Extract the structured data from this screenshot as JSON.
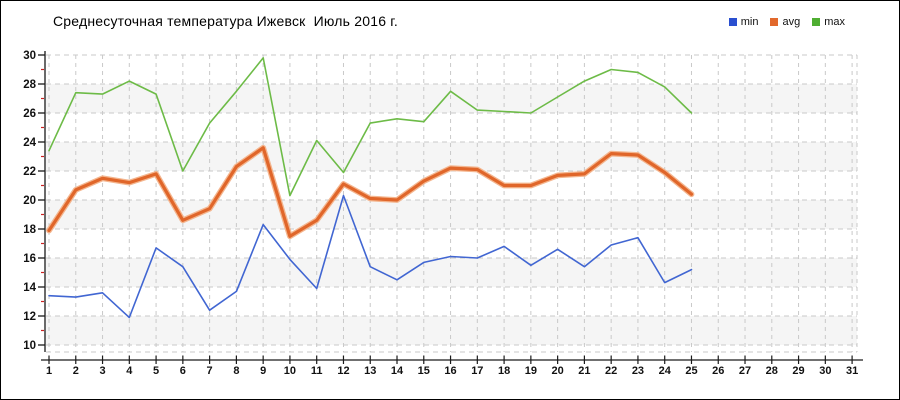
{
  "title": "Среднесуточная температура Ижевск  Июль 2016 г.",
  "legend": [
    {
      "label": "min",
      "color": "#2a4fd0"
    },
    {
      "label": "avg",
      "color": "#e2692c"
    },
    {
      "label": "max",
      "color": "#4fae32"
    }
  ],
  "chart_data": {
    "type": "line",
    "title": "Среднесуточная температура Ижевск  Июль 2016 г.",
    "xlabel": "",
    "ylabel": "",
    "x_days": [
      1,
      2,
      3,
      4,
      5,
      6,
      7,
      8,
      9,
      10,
      11,
      12,
      13,
      14,
      15,
      16,
      17,
      18,
      19,
      20,
      21,
      22,
      23,
      24,
      25,
      26,
      27,
      28,
      29,
      30,
      31
    ],
    "xlim": [
      1,
      31
    ],
    "ylim": [
      10,
      30
    ],
    "y_major_step": 2,
    "y_minor_step": 1,
    "grid": "dashed",
    "legend_position": "top-right",
    "gray_bands": [
      [
        10,
        12
      ],
      [
        14,
        16
      ],
      [
        18,
        20
      ],
      [
        22,
        24
      ],
      [
        26,
        28
      ]
    ],
    "colors": {
      "grid": "#c9c9c9",
      "axis": "#1a1a1a",
      "minor_tick": "#cc2222",
      "band": "#f5f5f5"
    },
    "series": [
      {
        "name": "max",
        "color": "#6dbb47",
        "width": 1.6,
        "values": [
          23.4,
          27.4,
          27.3,
          28.2,
          27.3,
          22.0,
          25.3,
          27.5,
          29.8,
          20.3,
          24.1,
          21.9,
          25.3,
          25.6,
          25.4,
          27.5,
          26.2,
          26.1,
          26.0,
          27.1,
          28.2,
          29.0,
          28.8,
          27.8,
          26.0
        ]
      },
      {
        "name": "min",
        "color": "#4166d2",
        "width": 1.6,
        "values": [
          13.4,
          13.3,
          13.6,
          11.9,
          16.7,
          15.4,
          12.4,
          13.7,
          18.3,
          15.9,
          13.9,
          20.3,
          15.4,
          14.5,
          15.7,
          16.1,
          16.0,
          16.8,
          15.5,
          16.6,
          15.4,
          16.9,
          17.4,
          14.3,
          15.2
        ]
      },
      {
        "name": "avg",
        "color": "#e0662a",
        "width": 3.2,
        "halo": "#f4b68f",
        "values": [
          17.9,
          20.7,
          21.5,
          21.2,
          21.8,
          18.6,
          19.4,
          22.3,
          23.6,
          17.5,
          18.6,
          21.1,
          20.1,
          20.0,
          21.3,
          22.2,
          22.1,
          21.0,
          21.0,
          21.7,
          21.8,
          23.2,
          23.1,
          21.9,
          20.4
        ]
      }
    ]
  }
}
